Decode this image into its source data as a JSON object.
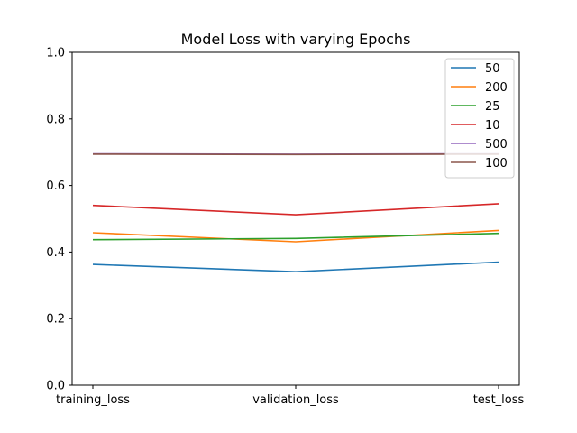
{
  "chart_data": {
    "type": "line",
    "title": "Model Loss with varying Epochs",
    "xlabel": "",
    "ylabel": "",
    "categories": [
      "training_loss",
      "validation_loss",
      "test_loss"
    ],
    "ylim": [
      0,
      1.0
    ],
    "yticks": [
      "0.0",
      "0.2",
      "0.4",
      "0.6",
      "0.8",
      "1.0"
    ],
    "grid": false,
    "legend_position": "top-right",
    "series": [
      {
        "name": "50",
        "color": "#1f77b4",
        "values": [
          0.363,
          0.341,
          0.37
        ]
      },
      {
        "name": "200",
        "color": "#ff7f0e",
        "values": [
          0.458,
          0.431,
          0.465
        ]
      },
      {
        "name": "25",
        "color": "#2ca02c",
        "values": [
          0.437,
          0.441,
          0.456
        ]
      },
      {
        "name": "10",
        "color": "#d62728",
        "values": [
          0.54,
          0.512,
          0.545
        ]
      },
      {
        "name": "500",
        "color": "#9467bd",
        "values": [
          0.695,
          0.694,
          0.695
        ]
      },
      {
        "name": "100",
        "color": "#8c564b",
        "values": [
          0.694,
          0.693,
          0.694
        ]
      }
    ]
  }
}
